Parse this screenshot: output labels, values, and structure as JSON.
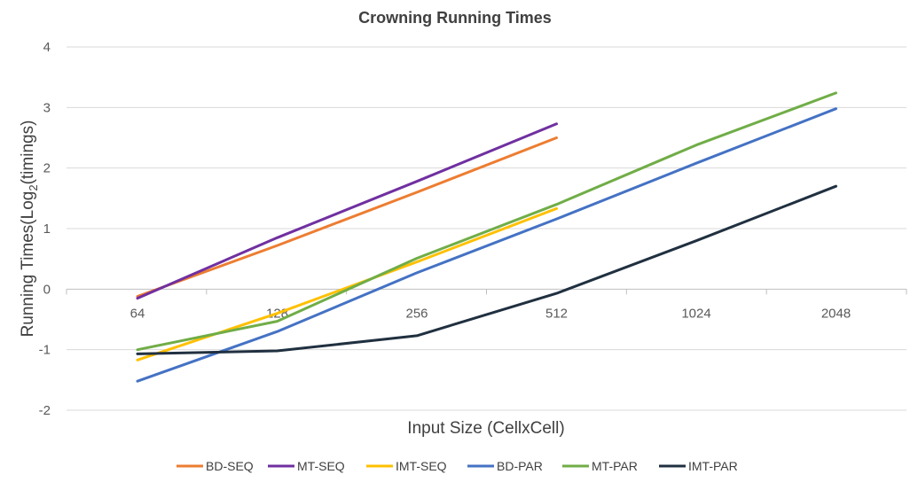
{
  "chart_data": {
    "type": "line",
    "title": "Crowning Running Times",
    "xlabel": "Input Size (CellxCell)",
    "ylabel_main": "Running Times(Log",
    "ylabel_sub": "2",
    "ylabel_tail": "(timings)",
    "categories": [
      "64",
      "128",
      "256",
      "512",
      "1024",
      "2048"
    ],
    "yticks": [
      "-2",
      "-1",
      "0",
      "1",
      "2",
      "3",
      "4"
    ],
    "ylim": [
      -2,
      4
    ],
    "grid": "horizontal",
    "legend_position": "bottom",
    "series": [
      {
        "name": "BD-SEQ",
        "color": "#ED7D31",
        "values": [
          -0.12,
          0.72,
          1.6,
          2.5,
          null,
          null
        ]
      },
      {
        "name": "MT-SEQ",
        "color": "#7030A0",
        "values": [
          -0.15,
          0.85,
          1.78,
          2.73,
          null,
          null
        ]
      },
      {
        "name": "IMT-SEQ",
        "color": "#FFC000",
        "values": [
          -1.17,
          -0.4,
          0.45,
          1.33,
          null,
          null
        ]
      },
      {
        "name": "BD-PAR",
        "color": "#4472C4",
        "values": [
          -1.52,
          -0.7,
          0.27,
          1.16,
          2.08,
          2.98
        ]
      },
      {
        "name": "MT-PAR",
        "color": "#70AD47",
        "values": [
          -1.0,
          -0.53,
          0.51,
          1.4,
          2.38,
          3.24
        ]
      },
      {
        "name": "IMT-PAR",
        "color": "#203040",
        "values": [
          -1.07,
          -1.02,
          -0.77,
          -0.07,
          0.8,
          1.7
        ]
      }
    ]
  }
}
